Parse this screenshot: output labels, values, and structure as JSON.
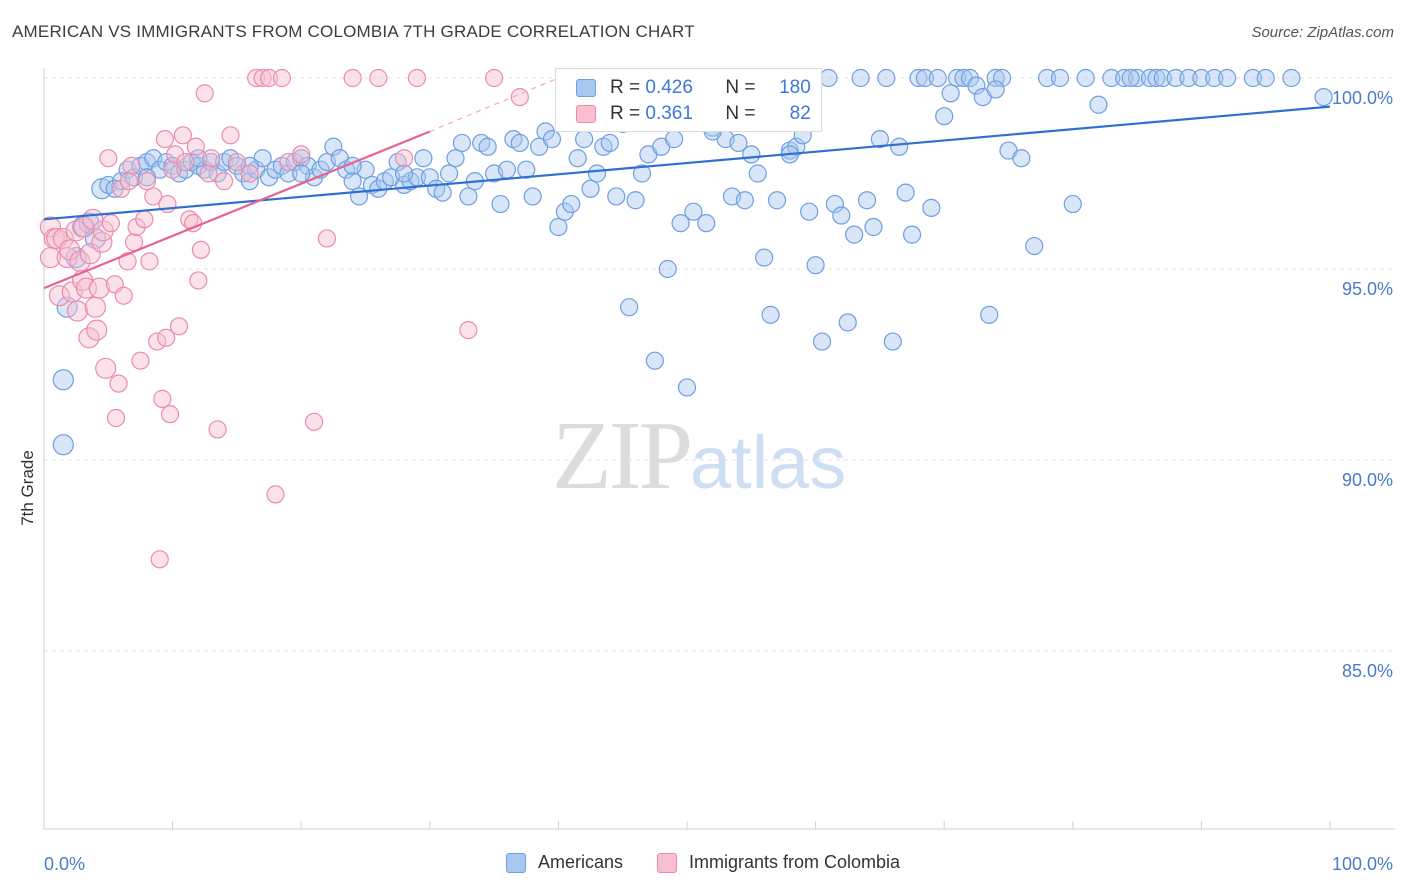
{
  "header": {
    "title": "AMERICAN VS IMMIGRANTS FROM COLOMBIA 7TH GRADE CORRELATION CHART",
    "source": "Source: ZipAtlas.com"
  },
  "watermark": {
    "zip": "ZIP",
    "atlas": "atlas"
  },
  "legend": {
    "rows": [
      {
        "r_label": "R =",
        "r_value": "0.426",
        "n_label": "N =",
        "n_value": "180",
        "color": "#a9c8f0",
        "border": "#6e9fe0"
      },
      {
        "r_label": "R =",
        "r_value": "0.361",
        "n_label": "N =",
        "n_value": "82",
        "color": "#f7bfd0",
        "border": "#ea8cab"
      }
    ]
  },
  "bottom_legend": [
    {
      "label": "Americans",
      "color": "#a9c8f0",
      "border": "#6e9fe0"
    },
    {
      "label": "Immigrants from Colombia",
      "color": "#f7bfd0",
      "border": "#ea8cab"
    }
  ],
  "chart_data": {
    "type": "scatter",
    "title": "AMERICAN VS IMMIGRANTS FROM COLOMBIA 7TH GRADE CORRELATION CHART",
    "xlabel": "",
    "ylabel": "7th Grade",
    "xlim": [
      0,
      100
    ],
    "ylim": [
      80.2,
      100.5
    ],
    "x_tick_labels": [
      "0.0%",
      "100.0%"
    ],
    "y_ticks": [
      85,
      90,
      95,
      100
    ],
    "y_tick_labels": [
      "85.0%",
      "90.0%",
      "95.0%",
      "100.0%"
    ],
    "grid": true,
    "legend_position": "top-center",
    "series": [
      {
        "name": "Americans",
        "color": "#6e9fe0",
        "fill": "rgba(169,200,240,0.45)",
        "trend": {
          "x": [
            0,
            100
          ],
          "y": [
            96.3,
            99.25
          ]
        },
        "points": [
          [
            1.5,
            90.4
          ],
          [
            1.5,
            92.1
          ],
          [
            1.8,
            94.0
          ],
          [
            2.5,
            95.3
          ],
          [
            3,
            96.1
          ],
          [
            3.5,
            96.2
          ],
          [
            4,
            95.8
          ],
          [
            4.5,
            97.1
          ],
          [
            5,
            97.2
          ],
          [
            5.5,
            97.1
          ],
          [
            6,
            97.3
          ],
          [
            6.5,
            97.6
          ],
          [
            7,
            97.4
          ],
          [
            7.5,
            97.7
          ],
          [
            8,
            97.8
          ],
          [
            8.5,
            97.9
          ],
          [
            9,
            97.6
          ],
          [
            9.5,
            97.8
          ],
          [
            10,
            97.7
          ],
          [
            10.5,
            97.5
          ],
          [
            11,
            97.6
          ],
          [
            11.5,
            97.8
          ],
          [
            12,
            97.7
          ],
          [
            12.5,
            97.6
          ],
          [
            13,
            97.8
          ],
          [
            13.5,
            97.5
          ],
          [
            14,
            97.8
          ],
          [
            14.5,
            97.9
          ],
          [
            15,
            97.7
          ],
          [
            15.5,
            97.5
          ],
          [
            16,
            97.3
          ],
          [
            16.5,
            97.6
          ],
          [
            17,
            97.9
          ],
          [
            17.5,
            97.4
          ],
          [
            18,
            97.6
          ],
          [
            18.5,
            97.7
          ],
          [
            19,
            97.5
          ],
          [
            19.5,
            97.8
          ],
          [
            20,
            97.9
          ],
          [
            20.5,
            97.7
          ],
          [
            21,
            97.4
          ],
          [
            21.5,
            97.6
          ],
          [
            22,
            97.8
          ],
          [
            22.5,
            98.2
          ],
          [
            23,
            97.9
          ],
          [
            23.5,
            97.6
          ],
          [
            24,
            97.3
          ],
          [
            24.5,
            96.9
          ],
          [
            25,
            97.6
          ],
          [
            25.5,
            97.2
          ],
          [
            26,
            97.1
          ],
          [
            26.5,
            97.3
          ],
          [
            27,
            97.4
          ],
          [
            27.5,
            97.8
          ],
          [
            28,
            97.2
          ],
          [
            28.5,
            97.3
          ],
          [
            29,
            97.4
          ],
          [
            29.5,
            97.9
          ],
          [
            30,
            97.4
          ],
          [
            30.5,
            97.1
          ],
          [
            31,
            97.0
          ],
          [
            31.5,
            97.5
          ],
          [
            32,
            97.9
          ],
          [
            32.5,
            98.3
          ],
          [
            33,
            96.9
          ],
          [
            33.5,
            97.3
          ],
          [
            34,
            98.3
          ],
          [
            34.5,
            98.2
          ],
          [
            35,
            97.5
          ],
          [
            35.5,
            96.7
          ],
          [
            36,
            97.6
          ],
          [
            36.5,
            98.4
          ],
          [
            37,
            98.3
          ],
          [
            37.5,
            97.6
          ],
          [
            38,
            96.9
          ],
          [
            38.5,
            98.2
          ],
          [
            39,
            98.6
          ],
          [
            39.5,
            98.4
          ],
          [
            40,
            96.1
          ],
          [
            40.5,
            96.5
          ],
          [
            41,
            96.7
          ],
          [
            41.5,
            97.9
          ],
          [
            42,
            98.4
          ],
          [
            42.5,
            97.1
          ],
          [
            43,
            97.5
          ],
          [
            43.5,
            98.2
          ],
          [
            44,
            98.3
          ],
          [
            44.5,
            96.9
          ],
          [
            45,
            98.8
          ],
          [
            45.5,
            94.0
          ],
          [
            46,
            96.8
          ],
          [
            46.5,
            97.5
          ],
          [
            47,
            98.0
          ],
          [
            47.5,
            92.6
          ],
          [
            48,
            98.2
          ],
          [
            48.5,
            95.0
          ],
          [
            49,
            98.4
          ],
          [
            49.5,
            96.2
          ],
          [
            50,
            91.9
          ],
          [
            50.5,
            96.5
          ],
          [
            51,
            98.9
          ],
          [
            51.5,
            96.2
          ],
          [
            52,
            98.7
          ],
          [
            52.5,
            99.6
          ],
          [
            53,
            98.4
          ],
          [
            53.5,
            96.9
          ],
          [
            54,
            98.3
          ],
          [
            54.5,
            96.8
          ],
          [
            55,
            98.0
          ],
          [
            55.5,
            97.5
          ],
          [
            56,
            95.3
          ],
          [
            56.5,
            93.8
          ],
          [
            57,
            96.8
          ],
          [
            58,
            98.1
          ],
          [
            58.5,
            98.2
          ],
          [
            59,
            98.5
          ],
          [
            59.5,
            96.5
          ],
          [
            60,
            95.1
          ],
          [
            60.5,
            93.1
          ],
          [
            61,
            100.0
          ],
          [
            61.5,
            96.7
          ],
          [
            62,
            96.4
          ],
          [
            62.5,
            93.6
          ],
          [
            63,
            95.9
          ],
          [
            63.5,
            100.0
          ],
          [
            64,
            96.8
          ],
          [
            64.5,
            96.1
          ],
          [
            65,
            98.4
          ],
          [
            65.5,
            100.0
          ],
          [
            66,
            93.1
          ],
          [
            66.5,
            98.2
          ],
          [
            67,
            97.0
          ],
          [
            67.5,
            95.9
          ],
          [
            68,
            100.0
          ],
          [
            68.5,
            100.0
          ],
          [
            69,
            96.6
          ],
          [
            69.5,
            100.0
          ],
          [
            70,
            99.0
          ],
          [
            70.5,
            99.6
          ],
          [
            71,
            100.0
          ],
          [
            71.5,
            100.0
          ],
          [
            72,
            100.0
          ],
          [
            72.5,
            99.8
          ],
          [
            73,
            99.5
          ],
          [
            73.5,
            93.8
          ],
          [
            74,
            100.0
          ],
          [
            74.5,
            100.0
          ],
          [
            75,
            98.1
          ],
          [
            76,
            97.9
          ],
          [
            77,
            95.6
          ],
          [
            78,
            100.0
          ],
          [
            79,
            100.0
          ],
          [
            80,
            96.7
          ],
          [
            81,
            100.0
          ],
          [
            82,
            99.3
          ],
          [
            83,
            100.0
          ],
          [
            84,
            100.0
          ],
          [
            85,
            100.0
          ],
          [
            86,
            100.0
          ],
          [
            86.5,
            100.0
          ],
          [
            87,
            100.0
          ],
          [
            88,
            100.0
          ],
          [
            89,
            100.0
          ],
          [
            90,
            100.0
          ],
          [
            91,
            100.0
          ],
          [
            92,
            100.0
          ],
          [
            94,
            100.0
          ],
          [
            95,
            100.0
          ],
          [
            97,
            100.0
          ],
          [
            99.5,
            99.5
          ],
          [
            8,
            97.4
          ],
          [
            12,
            97.9
          ],
          [
            16,
            97.7
          ],
          [
            20,
            97.5
          ],
          [
            24,
            97.7
          ],
          [
            28,
            97.5
          ],
          [
            52,
            98.6
          ],
          [
            58,
            98.0
          ],
          [
            74,
            99.7
          ],
          [
            84.5,
            100.0
          ]
        ]
      },
      {
        "name": "Immigrants from Colombia",
        "color": "#ea8cab",
        "fill": "rgba(247,191,208,0.45)",
        "trend": {
          "x": [
            0,
            30
          ],
          "y": [
            94.5,
            98.6
          ]
        },
        "trend_dashed": {
          "x": [
            30,
            40
          ],
          "y": [
            98.6,
            100.0
          ]
        },
        "points": [
          [
            0.5,
            96.1
          ],
          [
            0.5,
            95.3
          ],
          [
            0.8,
            95.8
          ],
          [
            1,
            95.8
          ],
          [
            1.2,
            94.3
          ],
          [
            1.5,
            95.8
          ],
          [
            1.8,
            95.3
          ],
          [
            2,
            95.5
          ],
          [
            2.2,
            94.4
          ],
          [
            2.5,
            96.0
          ],
          [
            2.6,
            93.9
          ],
          [
            2.8,
            95.2
          ],
          [
            3,
            94.7
          ],
          [
            3.1,
            96.1
          ],
          [
            3.3,
            94.5
          ],
          [
            3.5,
            93.2
          ],
          [
            3.6,
            95.4
          ],
          [
            3.8,
            96.3
          ],
          [
            4,
            94.0
          ],
          [
            4.1,
            93.4
          ],
          [
            4.3,
            94.5
          ],
          [
            4.5,
            95.7
          ],
          [
            4.6,
            96.0
          ],
          [
            4.8,
            92.4
          ],
          [
            5,
            97.9
          ],
          [
            5.2,
            96.2
          ],
          [
            5.5,
            94.6
          ],
          [
            5.6,
            91.1
          ],
          [
            5.8,
            92.0
          ],
          [
            6,
            97.1
          ],
          [
            6.2,
            94.3
          ],
          [
            6.5,
            95.2
          ],
          [
            6.8,
            97.7
          ],
          [
            7,
            95.7
          ],
          [
            7.2,
            96.1
          ],
          [
            7.5,
            92.6
          ],
          [
            7.8,
            96.3
          ],
          [
            8,
            97.3
          ],
          [
            8.2,
            95.2
          ],
          [
            8.5,
            96.9
          ],
          [
            8.8,
            93.1
          ],
          [
            9,
            87.4
          ],
          [
            9.2,
            91.6
          ],
          [
            9.5,
            93.2
          ],
          [
            9.6,
            96.7
          ],
          [
            9.8,
            91.2
          ],
          [
            10,
            97.6
          ],
          [
            10.2,
            98.0
          ],
          [
            10.5,
            93.5
          ],
          [
            10.8,
            98.5
          ],
          [
            11,
            97.8
          ],
          [
            11.3,
            96.3
          ],
          [
            11.6,
            96.2
          ],
          [
            12,
            94.7
          ],
          [
            12.2,
            95.5
          ],
          [
            12.5,
            99.6
          ],
          [
            12.8,
            97.5
          ],
          [
            13,
            97.9
          ],
          [
            13.5,
            90.8
          ],
          [
            14,
            97.3
          ],
          [
            14.5,
            98.5
          ],
          [
            15,
            97.8
          ],
          [
            16,
            97.5
          ],
          [
            16.5,
            100.0
          ],
          [
            17,
            100.0
          ],
          [
            17.5,
            100.0
          ],
          [
            18,
            89.1
          ],
          [
            18.5,
            100.0
          ],
          [
            19,
            97.8
          ],
          [
            20,
            98.0
          ],
          [
            21,
            91.0
          ],
          [
            22,
            95.8
          ],
          [
            24,
            100.0
          ],
          [
            26,
            100.0
          ],
          [
            28,
            97.9
          ],
          [
            29,
            100.0
          ],
          [
            33,
            93.4
          ],
          [
            35,
            100.0
          ],
          [
            37,
            99.5
          ],
          [
            9.4,
            98.4
          ],
          [
            11.8,
            98.2
          ],
          [
            6.6,
            97.3
          ]
        ]
      }
    ]
  }
}
